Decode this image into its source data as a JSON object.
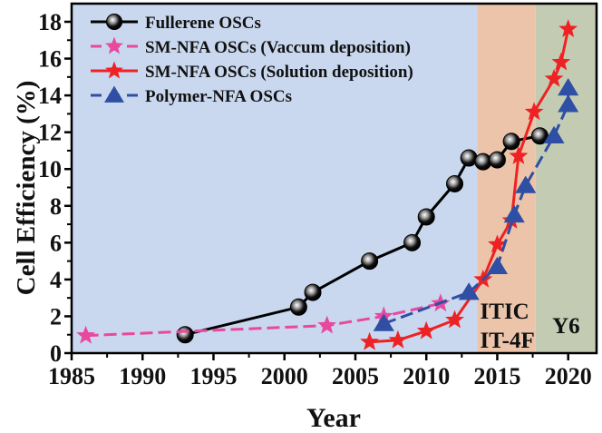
{
  "chart_data": {
    "type": "line",
    "title": "",
    "xlabel": "Year",
    "ylabel": "Cell Efficiency (%)",
    "xlim": [
      1985,
      2022
    ],
    "ylim": [
      0,
      18
    ],
    "xticks": [
      1985,
      1990,
      1995,
      2000,
      2005,
      2010,
      2015,
      2020
    ],
    "yticks": [
      0,
      2,
      4,
      6,
      8,
      10,
      12,
      14,
      16,
      18
    ],
    "grid": false,
    "legend_position": "top-left",
    "regions": [
      {
        "name": "pre-ITIC",
        "x_start": 1985,
        "x_end": 2013.6,
        "color": "#c9d8ee",
        "label": ""
      },
      {
        "name": "ITIC era",
        "x_start": 2013.6,
        "x_end": 2017.7,
        "color": "#ebc4aa",
        "label_lines": [
          "ITIC",
          "IT-4F"
        ]
      },
      {
        "name": "Y6 era",
        "x_start": 2017.7,
        "x_end": 2022,
        "color": "#c3ccb3",
        "label_lines": [
          "Y6"
        ]
      }
    ],
    "series": [
      {
        "name": "Fullerene OSCs",
        "color": "#000000",
        "marker": "sphere",
        "line": "solid",
        "x": [
          1993,
          2001,
          2002,
          2006,
          2009,
          2010,
          2012,
          2013,
          2014,
          2015,
          2016,
          2018
        ],
        "y": [
          1.0,
          2.5,
          3.3,
          5.0,
          6.0,
          7.4,
          9.2,
          10.6,
          10.4,
          10.5,
          11.5,
          11.8
        ]
      },
      {
        "name": "SM-NFA OSCs (Vaccum deposition)",
        "color": "#e8489e",
        "marker": "star",
        "line": "dashed",
        "x": [
          1986,
          2003,
          2007,
          2011
        ],
        "y": [
          0.95,
          1.5,
          2.0,
          2.7
        ]
      },
      {
        "name": "SM-NFA OSCs (Solution deposition)",
        "color": "#ee2224",
        "marker": "star",
        "line": "solid",
        "x": [
          2006,
          2008,
          2010,
          2012,
          2014,
          2015,
          2016,
          2016.5,
          2017.6,
          2019,
          2019.5,
          2020
        ],
        "y": [
          0.6,
          0.7,
          1.2,
          1.8,
          4.0,
          5.9,
          7.2,
          10.7,
          13.1,
          14.9,
          15.8,
          17.6
        ]
      },
      {
        "name": "Polymer-NFA OSCs",
        "color": "#2e4fa3",
        "marker": "triangle",
        "line": "dashed",
        "x": [
          2007,
          2013,
          2015,
          2016.2,
          2017,
          2019,
          2020,
          2020
        ],
        "y": [
          1.6,
          3.3,
          4.7,
          7.5,
          9.1,
          11.8,
          13.5,
          14.4
        ]
      }
    ]
  }
}
